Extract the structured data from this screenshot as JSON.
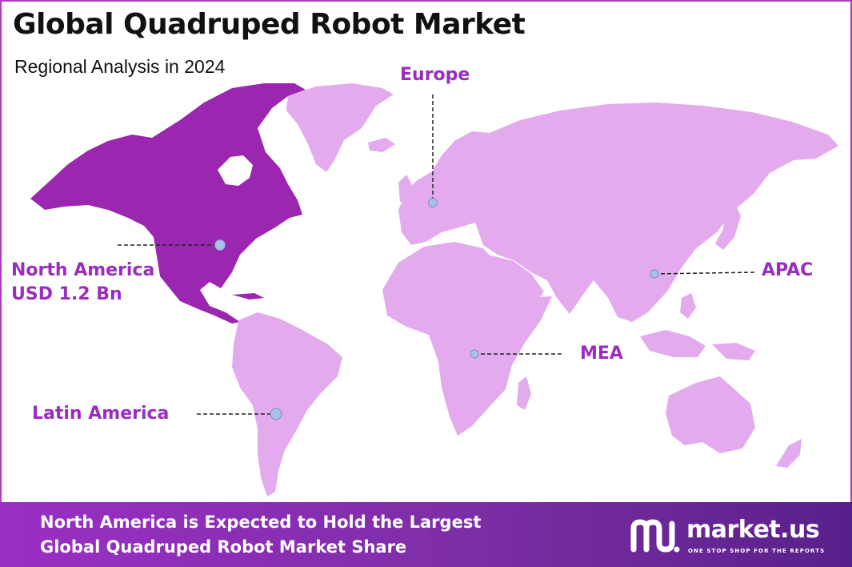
{
  "header": {
    "title": "Global Quadruped Robot Market",
    "subtitle": "Regional Analysis in 2024"
  },
  "colors": {
    "highlight": "#9b27b0",
    "land": "#e3aaee",
    "label": "#9a2cc0",
    "marker": "#a9c0ea",
    "footer_start": "#9a2fc4",
    "footer_end": "#58208a"
  },
  "regions": {
    "north_america": {
      "name": "North America",
      "value": "USD 1.2 Bn",
      "highlighted": true
    },
    "europe": {
      "name": "Europe"
    },
    "apac": {
      "name": "APAC"
    },
    "mea": {
      "name": "MEA"
    },
    "latin_america": {
      "name": "Latin America"
    }
  },
  "footer": {
    "line1": "North America is Expected to Hold the Largest",
    "line2": "Global Quadruped Robot Market Share"
  },
  "brand": {
    "name": "market.us",
    "tagline": "ONE STOP SHOP FOR THE REPORTS",
    "icon": "market-us-logo-icon"
  }
}
